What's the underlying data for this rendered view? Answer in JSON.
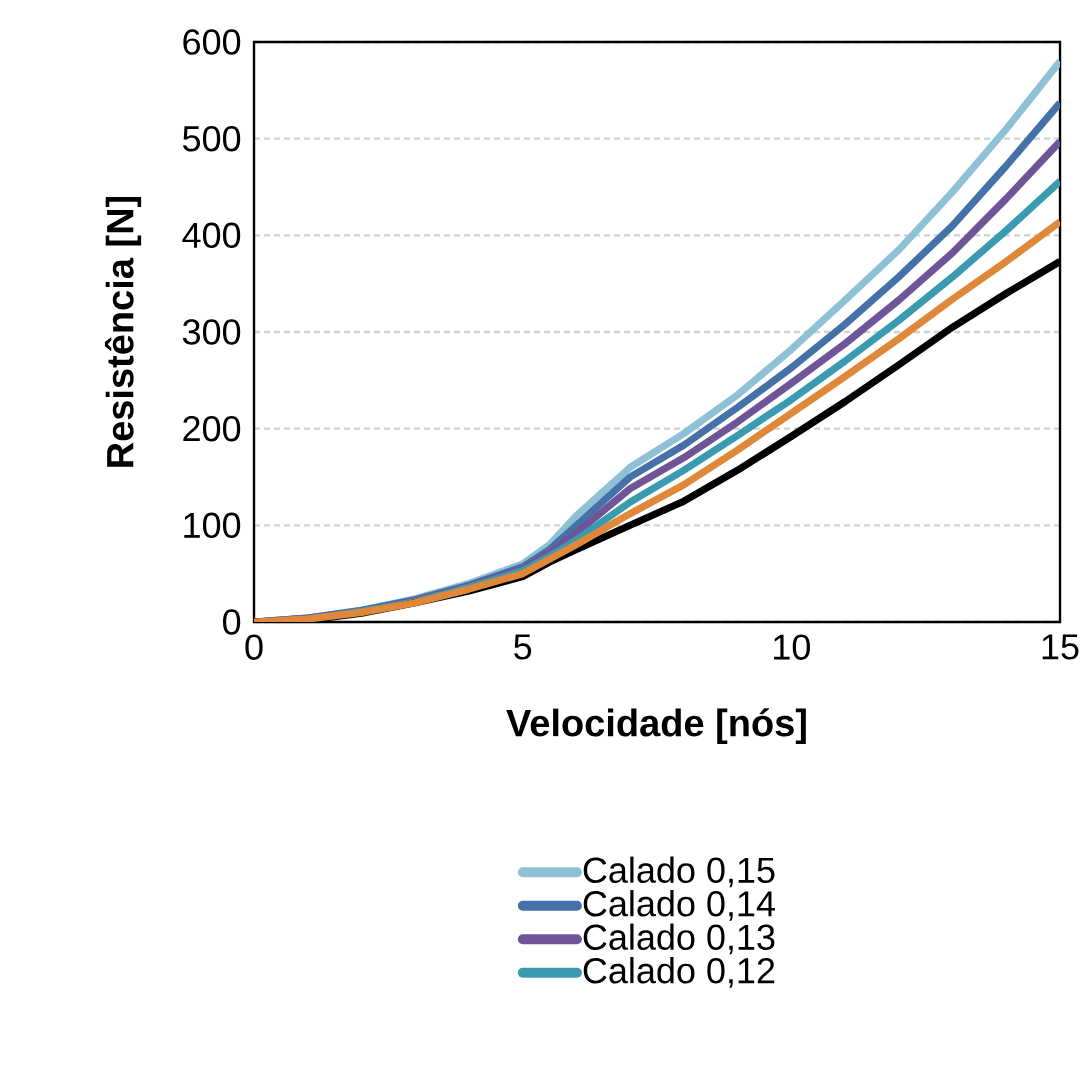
{
  "chart_data": {
    "type": "line",
    "xlabel": "Velocidade [nós]",
    "ylabel": "Resistência [N]",
    "x": [
      0,
      1,
      2,
      3,
      4,
      5,
      5.5,
      6,
      7,
      8,
      9,
      10,
      11,
      12,
      13,
      14,
      15
    ],
    "series": [
      {
        "name": "Calado 0,15",
        "color": "#8fc1d6",
        "values": [
          0,
          4,
          12,
          24,
          40,
          60,
          80,
          110,
          160,
          195,
          235,
          282,
          333,
          385,
          445,
          510,
          580
        ]
      },
      {
        "name": "Calado 0,14",
        "color": "#4472a8",
        "values": [
          0,
          4,
          12,
          23,
          38,
          57,
          75,
          100,
          150,
          183,
          222,
          263,
          308,
          357,
          410,
          472,
          537
        ]
      },
      {
        "name": "Calado 0,13",
        "color": "#6f5597",
        "values": [
          0,
          4,
          11,
          22,
          37,
          55,
          72,
          92,
          138,
          170,
          207,
          247,
          288,
          333,
          382,
          438,
          497
        ]
      },
      {
        "name": "Calado 0,12",
        "color": "#3a9ab0",
        "values": [
          0,
          3,
          11,
          21,
          36,
          53,
          68,
          85,
          124,
          157,
          193,
          230,
          270,
          312,
          357,
          405,
          456
        ]
      },
      {
        "color": "#e0883a",
        "values": [
          0,
          3,
          10,
          20,
          34,
          50,
          65,
          80,
          112,
          142,
          178,
          216,
          254,
          293,
          334,
          373,
          414
        ]
      },
      {
        "color": "#000000",
        "values": [
          0,
          2,
          9,
          20,
          32,
          47,
          62,
          75,
          100,
          125,
          157,
          192,
          228,
          266,
          305,
          340,
          373
        ]
      }
    ],
    "xlim": [
      0,
      15
    ],
    "ylim": [
      0,
      600
    ],
    "xticks": [
      0,
      5,
      10,
      15
    ],
    "yticks": [
      0,
      100,
      200,
      300,
      400,
      500,
      600
    ],
    "grid": "y",
    "legend": "bottom",
    "marker": "none",
    "line_style": "solid"
  }
}
